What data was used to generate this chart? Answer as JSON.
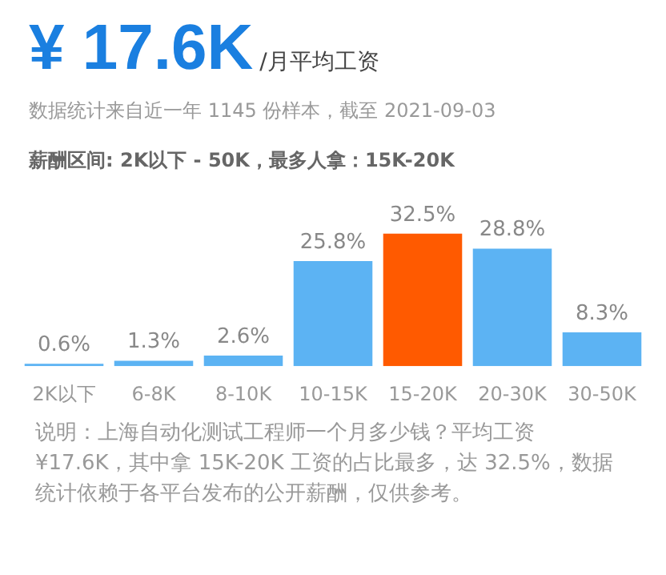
{
  "chart_data": {
    "type": "bar",
    "title": "¥ 17.6K",
    "subtitle": "/月平均工资",
    "annotations": [
      "数据统计来自近一年 1145 份样本，截至 2021-09-03",
      "薪酬区间: 2K以下 - 50K，最多人拿：15K-20K",
      "说明：上海自动化测试工程师一个月多少钱？平均工资 ¥17.6K，其中拿 15K-20K 工资的占比最多，达 32.5%，数据统计依赖于各平台发布的公开薪酬，仅供参考。"
    ],
    "categories": [
      "2K以下",
      "6-8K",
      "8-10K",
      "10-15K",
      "15-20K",
      "20-30K",
      "30-50K"
    ],
    "values": [
      0.6,
      1.3,
      2.6,
      25.8,
      32.5,
      28.8,
      8.3
    ],
    "colors": [
      "#5cb3f3",
      "#5cb3f3",
      "#5cb3f3",
      "#5cb3f3",
      "#ff5a00",
      "#5cb3f3",
      "#5cb3f3"
    ],
    "value_labels": [
      "0.6%",
      "1.3%",
      "2.6%",
      "25.8%",
      "32.5%",
      "28.8%",
      "8.3%"
    ],
    "grid": false,
    "legend": false
  }
}
